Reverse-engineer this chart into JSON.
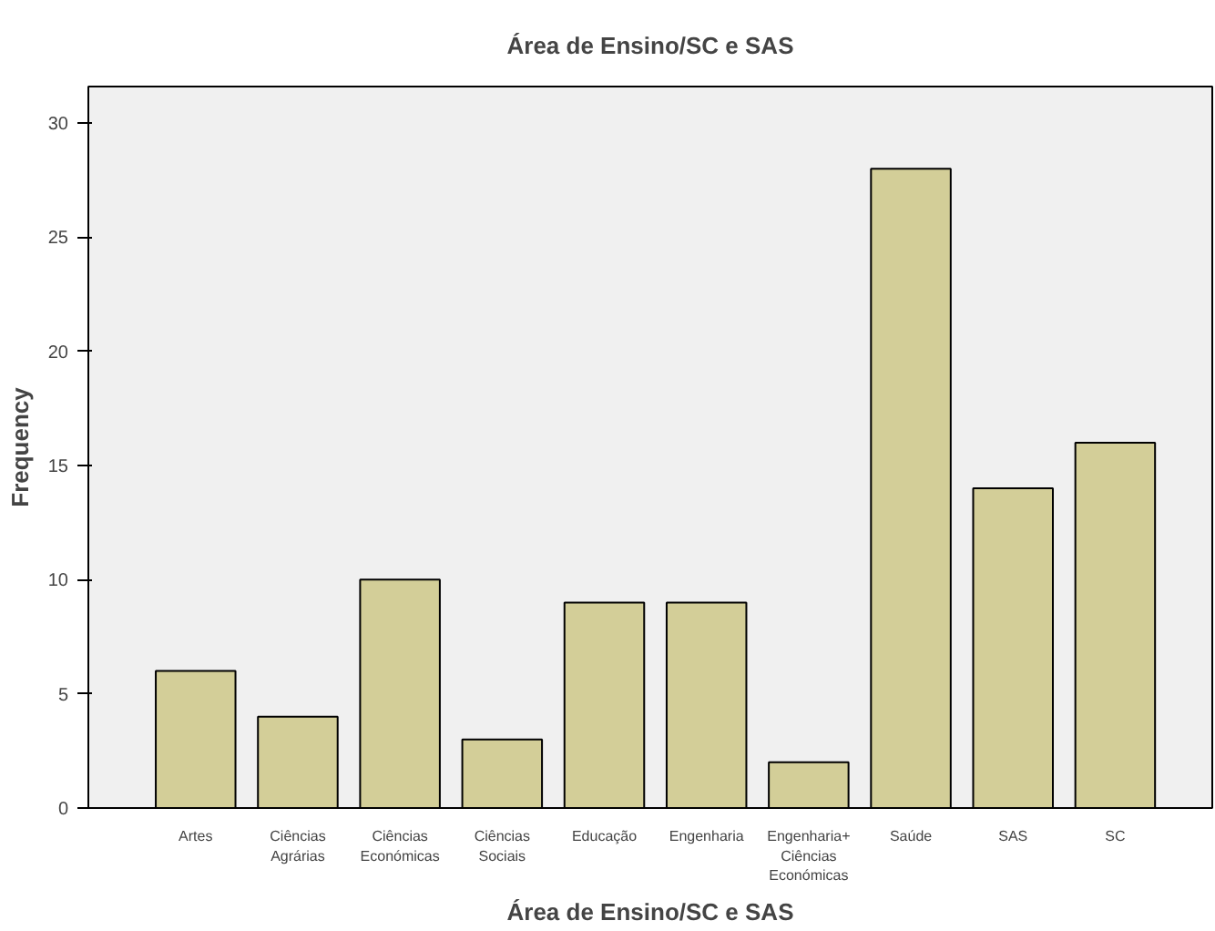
{
  "chart_data": {
    "type": "bar",
    "title": "Área de Ensino/SC e SAS",
    "xlabel": "Área de Ensino/SC e SAS",
    "ylabel": "Frequency",
    "categories": [
      "Artes",
      "Ciências\nAgrárias",
      "Ciências\nEconómicas",
      "Ciências\nSociais",
      "Educação",
      "Engenharia",
      "Engenharia+\nCiências\nEconómicas",
      "Saúde",
      "SAS",
      "SC"
    ],
    "values": [
      6,
      4,
      10,
      3,
      9,
      9,
      2,
      28,
      14,
      16
    ],
    "color": "#d3ce98",
    "ylim": [
      0,
      31.6
    ],
    "yticks": [
      0,
      5,
      10,
      15,
      20,
      25,
      30
    ],
    "grid": false
  }
}
